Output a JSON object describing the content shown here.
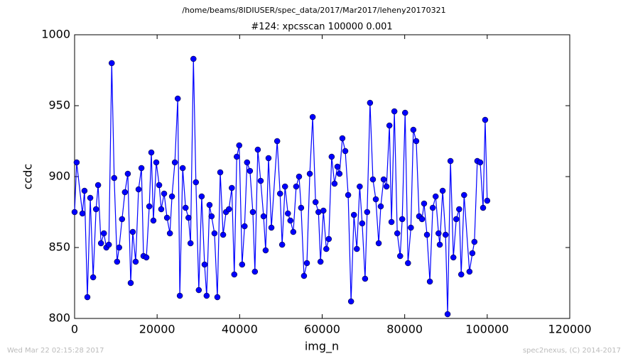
{
  "chart_data": {
    "type": "line",
    "suptitle": "/home/beams/8IDIUSER/spec_data/2017/Mar2017/leheny20170321",
    "title": "#124: xpcsscan 100000 0.001",
    "xlabel": "img_n",
    "ylabel": "ccdc",
    "footer_left": "Wed Mar 22 02:15:28 2017",
    "footer_right": "spec2nexus, (C) 2014-2017",
    "xlim": [
      0,
      120000
    ],
    "xticks": [
      0,
      20000,
      40000,
      60000,
      80000,
      100000,
      120000
    ],
    "ylim": [
      800,
      1000
    ],
    "yticks": [
      800,
      850,
      900,
      950,
      1000
    ],
    "x": [
      0,
      500,
      1900,
      2400,
      3100,
      3800,
      4500,
      5200,
      5700,
      6400,
      7100,
      7700,
      8300,
      9000,
      9600,
      10300,
      10800,
      11500,
      12200,
      12900,
      13600,
      14100,
      14800,
      15500,
      16200,
      16700,
      17400,
      18100,
      18600,
      19100,
      19800,
      20500,
      21000,
      21700,
      22400,
      23100,
      23600,
      24300,
      25000,
      25500,
      26200,
      26900,
      27600,
      28100,
      28800,
      29400,
      30100,
      30800,
      31500,
      32000,
      32700,
      33200,
      33900,
      34600,
      35300,
      36000,
      36700,
      37400,
      38100,
      38700,
      39300,
      39900,
      40600,
      41200,
      41800,
      42500,
      43200,
      43700,
      44400,
      45100,
      45800,
      46300,
      47000,
      47700,
      49100,
      49800,
      50300,
      51000,
      51700,
      52300,
      53000,
      53700,
      54400,
      54900,
      55600,
      56300,
      57000,
      57700,
      58400,
      59100,
      59600,
      60300,
      61000,
      61600,
      62300,
      63000,
      63700,
      64200,
      64900,
      65600,
      66300,
      67000,
      67700,
      68400,
      69100,
      69700,
      70400,
      70900,
      71600,
      72300,
      73000,
      73700,
      74200,
      74900,
      75600,
      76300,
      76800,
      77500,
      78200,
      78900,
      79400,
      80100,
      80800,
      81500,
      82100,
      82800,
      83500,
      84200,
      84700,
      85400,
      86100,
      86800,
      87500,
      88200,
      88500,
      89200,
      89900,
      90400,
      91100,
      91800,
      92500,
      93200,
      93700,
      94400,
      95700,
      96400,
      96900,
      97600,
      98300,
      99000,
      99500,
      100000
    ],
    "series": [
      {
        "name": "ccdc",
        "color": "#0000ff",
        "values": [
          875,
          910,
          874,
          890,
          815,
          885,
          829,
          877,
          894,
          853,
          860,
          850,
          852,
          980,
          899,
          840,
          850,
          870,
          889,
          902,
          825,
          861,
          840,
          891,
          906,
          844,
          843,
          879,
          917,
          869,
          910,
          894,
          877,
          888,
          871,
          860,
          886,
          910,
          955,
          816,
          906,
          878,
          871,
          853,
          983,
          896,
          820,
          886,
          838,
          816,
          880,
          872,
          860,
          815,
          903,
          859,
          875,
          877,
          892,
          831,
          914,
          922,
          838,
          865,
          910,
          904,
          875,
          833,
          919,
          897,
          872,
          848,
          913,
          864,
          925,
          888,
          852,
          893,
          874,
          869,
          861,
          893,
          900,
          878,
          830,
          839,
          902,
          942,
          882,
          875,
          840,
          876,
          849,
          856,
          914,
          895,
          907,
          902,
          927,
          918,
          887,
          812,
          873,
          849,
          893,
          867,
          828,
          875,
          952,
          898,
          884,
          853,
          879,
          898,
          893,
          936,
          868,
          946,
          860,
          844,
          870,
          945,
          839,
          864,
          933,
          925,
          872,
          870,
          881,
          859,
          826,
          878,
          886,
          860,
          852,
          890,
          859,
          803,
          911,
          843,
          870,
          877,
          831,
          887,
          833,
          846,
          854,
          911,
          910,
          878,
          940,
          883
        ]
      }
    ]
  }
}
